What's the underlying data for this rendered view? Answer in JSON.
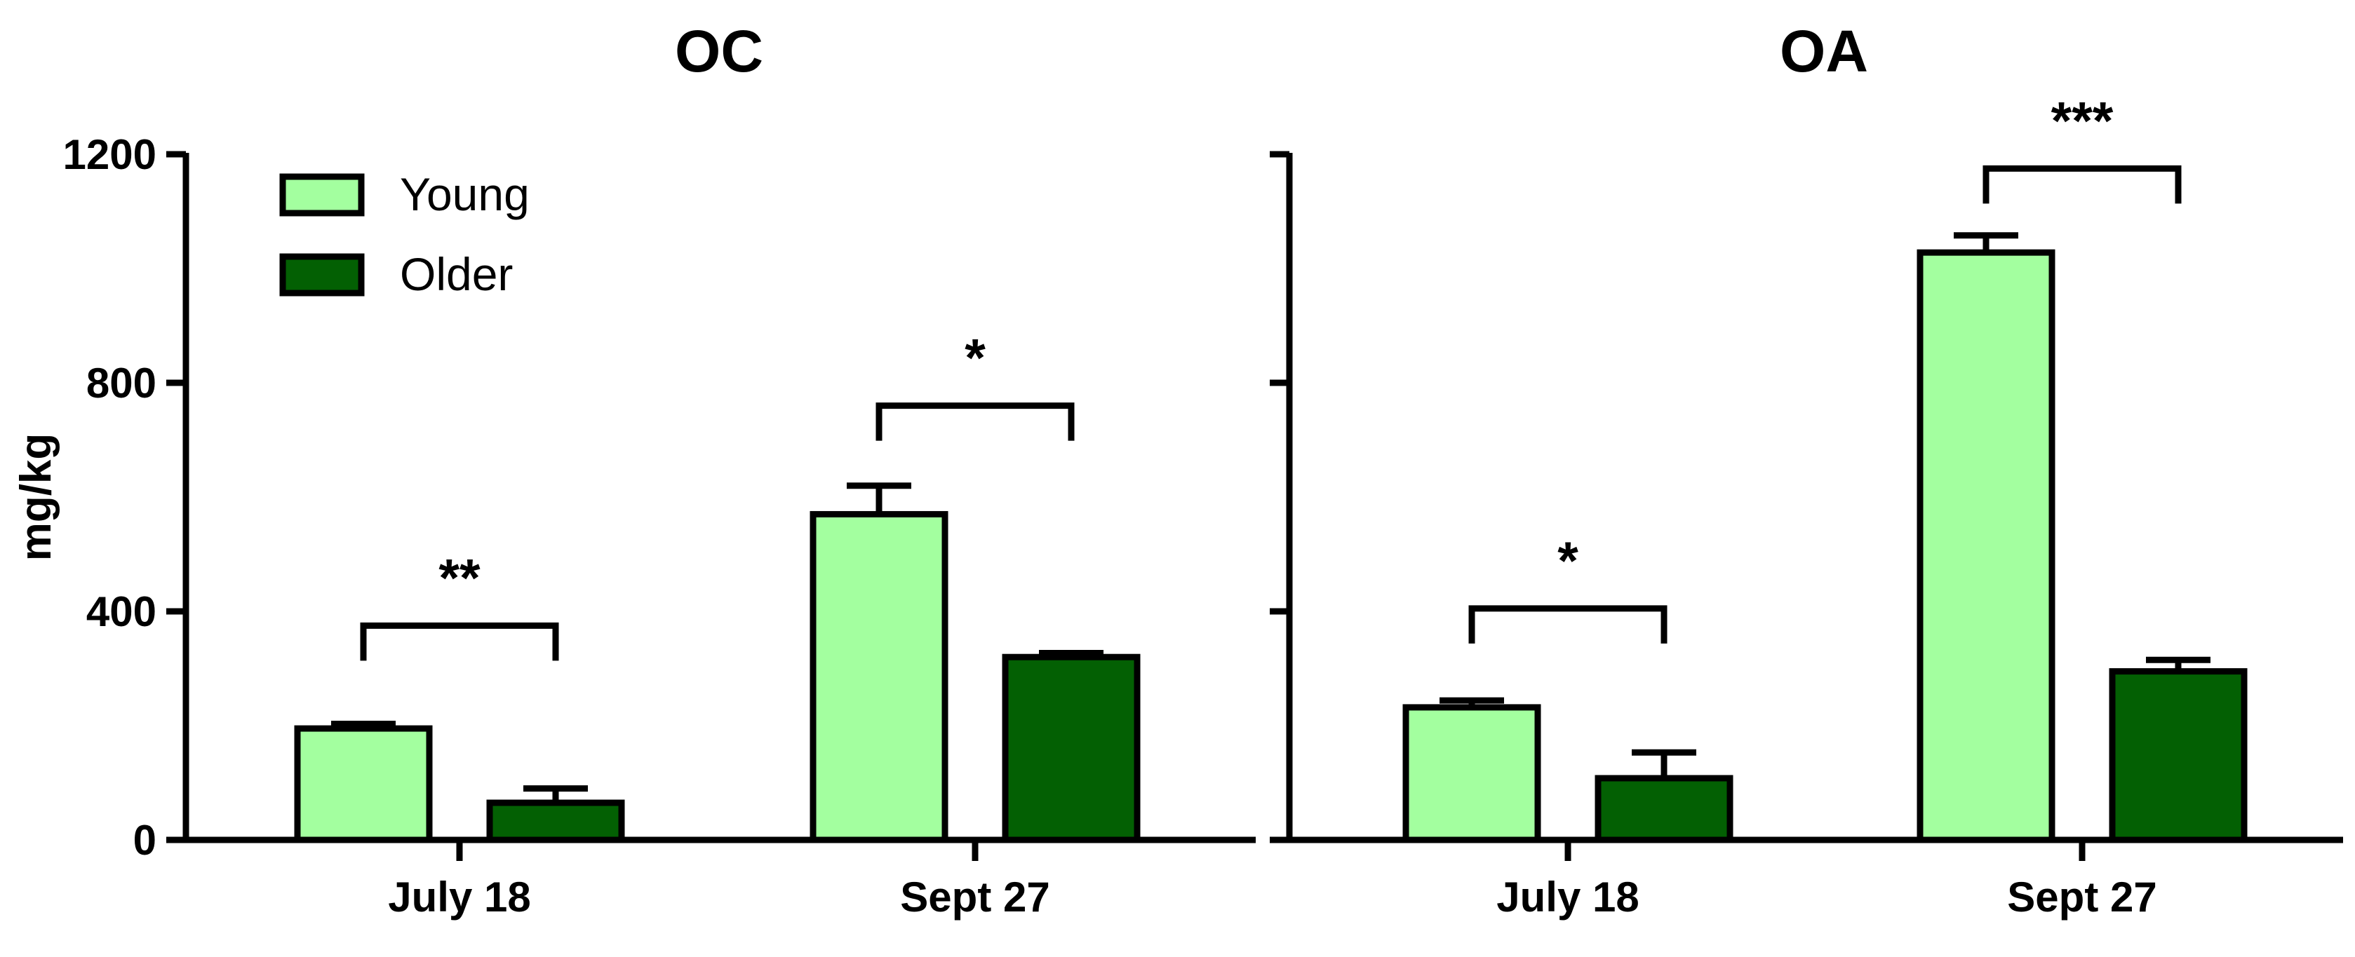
{
  "chart_data": [
    {
      "type": "bar",
      "title": "OC",
      "categories": [
        "July 18",
        "Sept 27"
      ],
      "series": [
        {
          "name": "Young",
          "values": [
            195,
            570
          ],
          "errors": [
            8,
            50
          ],
          "color": "#a3ff9f"
        },
        {
          "name": "Older",
          "values": [
            65,
            320
          ],
          "errors": [
            25,
            7
          ],
          "color": "#036003"
        }
      ],
      "ylabel": "mg/kg",
      "ylim": [
        0,
        1200
      ],
      "yticks": [
        "0",
        "400",
        "800",
        "1200"
      ],
      "legend": {
        "placement": "top-left",
        "entries": [
          "Young",
          "Older"
        ]
      },
      "significance": [
        {
          "category": "July 18",
          "label": "**",
          "bracket_value": 375
        },
        {
          "category": "Sept 27",
          "label": "*",
          "bracket_value": 760
        }
      ]
    },
    {
      "type": "bar",
      "title": "OA",
      "categories": [
        "July 18",
        "Sept 27"
      ],
      "series": [
        {
          "name": "Young",
          "values": [
            232,
            1028
          ],
          "errors": [
            12,
            30
          ],
          "color": "#a3ff9f"
        },
        {
          "name": "Older",
          "values": [
            108,
            295
          ],
          "errors": [
            45,
            20
          ],
          "color": "#036003"
        }
      ],
      "ylim": [
        0,
        1200
      ],
      "significance": [
        {
          "category": "July 18",
          "label": "*",
          "bracket_value": 405
        },
        {
          "category": "Sept 27",
          "label": "***",
          "bracket_value": 1175
        }
      ]
    }
  ]
}
